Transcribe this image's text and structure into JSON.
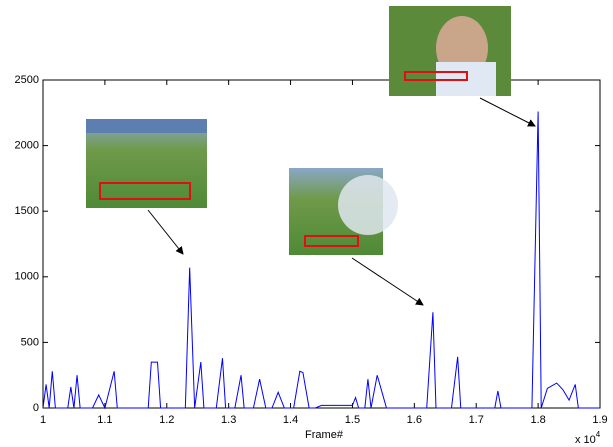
{
  "chart_data": {
    "type": "line",
    "x_label": "Frame#",
    "x_scale_label": {
      "base": "x 10",
      "exponent": "4"
    },
    "xlim": [
      1,
      1.9
    ],
    "ylim": [
      0,
      2500
    ],
    "xticks": [
      1,
      1.1,
      1.2,
      1.3,
      1.4,
      1.5,
      1.6,
      1.7,
      1.8,
      1.9
    ],
    "yticks": [
      0,
      500,
      1000,
      1500,
      2000,
      2500
    ],
    "series": [
      {
        "color": "#0000ff",
        "x": [
          1,
          1.005,
          1.01,
          1.015,
          1.02,
          1.04,
          1.045,
          1.05,
          1.055,
          1.06,
          1.08,
          1.09,
          1.1,
          1.115,
          1.12,
          1.17,
          1.175,
          1.185,
          1.19,
          1.23,
          1.237,
          1.245,
          1.255,
          1.26,
          1.28,
          1.29,
          1.295,
          1.31,
          1.32,
          1.325,
          1.34,
          1.35,
          1.36,
          1.37,
          1.38,
          1.39,
          1.405,
          1.415,
          1.42,
          1.43,
          1.44,
          1.45,
          1.5,
          1.505,
          1.51,
          1.52,
          1.525,
          1.53,
          1.54,
          1.555,
          1.62,
          1.63,
          1.635,
          1.66,
          1.67,
          1.675,
          1.73,
          1.735,
          1.74,
          1.79,
          1.8,
          1.805,
          1.815,
          1.83,
          1.84,
          1.85,
          1.86,
          1.865,
          1.9
        ],
        "values": [
          0,
          180,
          0,
          280,
          0,
          0,
          160,
          0,
          250,
          0,
          0,
          100,
          0,
          280,
          0,
          0,
          350,
          350,
          0,
          0,
          1070,
          0,
          350,
          0,
          0,
          380,
          0,
          0,
          250,
          0,
          0,
          220,
          0,
          0,
          120,
          0,
          0,
          280,
          270,
          0,
          0,
          20,
          20,
          80,
          0,
          0,
          220,
          0,
          250,
          0,
          0,
          730,
          0,
          0,
          390,
          0,
          0,
          130,
          0,
          0,
          2260,
          0,
          150,
          190,
          140,
          60,
          180,
          0,
          0
        ]
      }
    ]
  }
}
